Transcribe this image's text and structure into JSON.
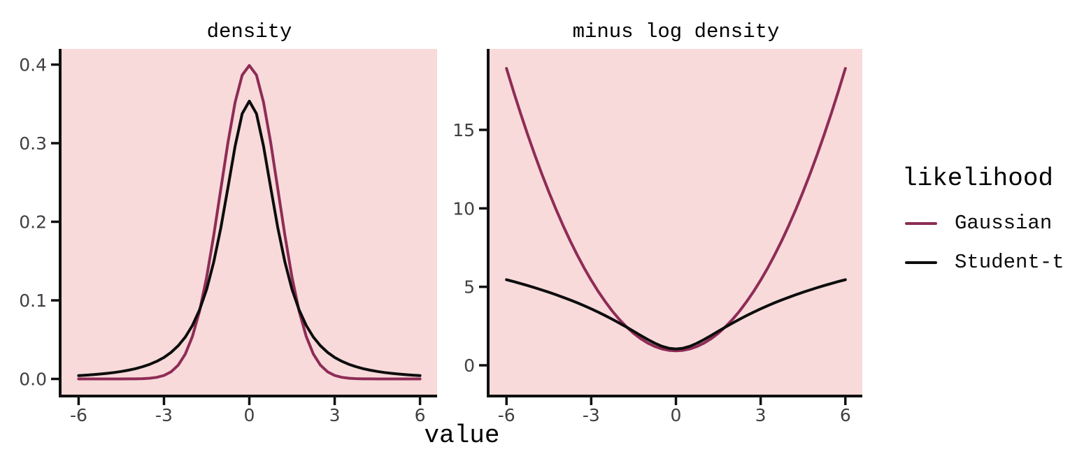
{
  "style": {
    "figure_background": "#ffffff",
    "panel_background": "#F8DADB",
    "axis_color": "#101010",
    "tick_label_color": "#404040",
    "title_color": "#000000"
  },
  "axis": {
    "x_label": "value"
  },
  "legend": {
    "title": "likelihood",
    "position": "right",
    "entries": [
      {
        "label": "Gaussian",
        "color": "#8E2C55"
      },
      {
        "label": "Student-t",
        "color": "#0D0D0D"
      }
    ]
  },
  "chart_data": [
    {
      "type": "line",
      "title": "density",
      "xlabel": "value",
      "ylabel": "",
      "grid": false,
      "xlim": [
        -6,
        6
      ],
      "ylim": [
        0,
        0.4
      ],
      "x_ticks": [
        -6,
        -3,
        0,
        3,
        6
      ],
      "x_tick_labels": [
        "-6",
        "-3",
        "0",
        "3",
        "6"
      ],
      "y_ticks": [
        0.0,
        0.1,
        0.2,
        0.3,
        0.4
      ],
      "y_tick_labels": [
        "0.0",
        "0.1",
        "0.2",
        "0.3",
        "0.4"
      ],
      "x": [
        -6,
        -5.75,
        -5.5,
        -5.25,
        -5,
        -4.75,
        -4.5,
        -4.25,
        -4,
        -3.75,
        -3.5,
        -3.25,
        -3,
        -2.75,
        -2.5,
        -2.25,
        -2,
        -1.75,
        -1.5,
        -1.25,
        -1,
        -0.75,
        -0.5,
        -0.25,
        0,
        0.25,
        0.5,
        0.75,
        1,
        1.25,
        1.5,
        1.75,
        2,
        2.25,
        2.5,
        2.75,
        3,
        3.25,
        3.5,
        3.75,
        4,
        4.25,
        4.5,
        4.75,
        5,
        5.25,
        5.5,
        5.75,
        6
      ],
      "series": [
        {
          "name": "Gaussian",
          "color": "#8E2C55",
          "y": [
            0,
            0,
            0,
            0,
            0,
            1e-05,
            2e-05,
            5e-05,
            0.00013,
            0.00035,
            0.00087,
            0.00203,
            0.00443,
            0.00909,
            0.01753,
            0.03174,
            0.05399,
            0.08628,
            0.12952,
            0.18265,
            0.24197,
            0.30114,
            0.35207,
            0.38667,
            0.39894,
            0.38667,
            0.35207,
            0.30114,
            0.24197,
            0.18265,
            0.12952,
            0.08628,
            0.05399,
            0.03174,
            0.01753,
            0.00909,
            0.00443,
            0.00203,
            0.00087,
            0.00035,
            0.00013,
            5e-05,
            2e-05,
            1e-05,
            0,
            0,
            0,
            0,
            0
          ]
        },
        {
          "name": "Student-t",
          "color": "#0D0D0D",
          "y": [
            0.00427,
            0.00482,
            0.00546,
            0.00622,
            0.00713,
            0.00821,
            0.00953,
            0.01113,
            0.0131,
            0.01553,
            0.01859,
            0.02246,
            0.02741,
            0.03382,
            0.0422,
            0.05329,
            0.06804,
            0.08779,
            0.11413,
            0.14871,
            0.19245,
            0.24378,
            0.2963,
            0.3376,
            0.35355,
            0.3376,
            0.2963,
            0.24378,
            0.19245,
            0.14871,
            0.11413,
            0.08779,
            0.06804,
            0.05329,
            0.0422,
            0.03382,
            0.02741,
            0.02246,
            0.01859,
            0.01553,
            0.0131,
            0.01113,
            0.00953,
            0.00821,
            0.00713,
            0.00622,
            0.00546,
            0.00482,
            0.00427
          ]
        }
      ]
    },
    {
      "type": "line",
      "title": "minus log density",
      "xlabel": "value",
      "ylabel": "",
      "grid": false,
      "xlim": [
        -6,
        6
      ],
      "ylim": [
        0,
        18.92
      ],
      "x_ticks": [
        -6,
        -3,
        0,
        3,
        6
      ],
      "x_tick_labels": [
        "-6",
        "-3",
        "0",
        "3",
        "6"
      ],
      "y_ticks": [
        0,
        5,
        10,
        15
      ],
      "y_tick_labels": [
        "0",
        "5",
        "10",
        "15"
      ],
      "x": [
        -6,
        -5.75,
        -5.5,
        -5.25,
        -5,
        -4.75,
        -4.5,
        -4.25,
        -4,
        -3.75,
        -3.5,
        -3.25,
        -3,
        -2.75,
        -2.5,
        -2.25,
        -2,
        -1.75,
        -1.5,
        -1.25,
        -1,
        -0.75,
        -0.5,
        -0.25,
        0,
        0.25,
        0.5,
        0.75,
        1,
        1.25,
        1.5,
        1.75,
        2,
        2.25,
        2.5,
        2.75,
        3,
        3.25,
        3.5,
        3.75,
        4,
        4.25,
        4.5,
        4.75,
        5,
        5.25,
        5.5,
        5.75,
        6
      ],
      "series": [
        {
          "name": "Gaussian",
          "color": "#8E2C55",
          "y": [
            18.919,
            17.45,
            16.044,
            14.7,
            13.419,
            12.2,
            11.044,
            9.95,
            8.919,
            7.95,
            7.044,
            6.2,
            5.419,
            4.7,
            4.044,
            3.45,
            2.919,
            2.45,
            2.044,
            1.7,
            1.419,
            1.2,
            1.044,
            0.95,
            0.919,
            0.95,
            1.044,
            1.2,
            1.419,
            1.7,
            2.044,
            2.45,
            2.919,
            3.45,
            4.044,
            4.7,
            5.419,
            6.2,
            7.044,
            7.95,
            8.919,
            9.95,
            11.044,
            12.2,
            13.419,
            14.7,
            16.044,
            17.45,
            18.919
          ]
        },
        {
          "name": "Student-t",
          "color": "#0D0D0D",
          "y": [
            5.456,
            5.336,
            5.21,
            5.08,
            4.944,
            4.802,
            4.654,
            4.498,
            4.336,
            4.165,
            3.985,
            3.796,
            3.597,
            3.387,
            3.165,
            2.932,
            2.688,
            2.433,
            2.17,
            1.906,
            1.648,
            1.411,
            1.216,
            1.086,
            1.04,
            1.086,
            1.216,
            1.411,
            1.648,
            1.906,
            2.17,
            2.433,
            2.688,
            2.932,
            3.165,
            3.387,
            3.597,
            3.796,
            3.985,
            4.165,
            4.336,
            4.498,
            4.654,
            4.802,
            4.944,
            5.08,
            5.21,
            5.336,
            5.456
          ]
        }
      ]
    }
  ]
}
